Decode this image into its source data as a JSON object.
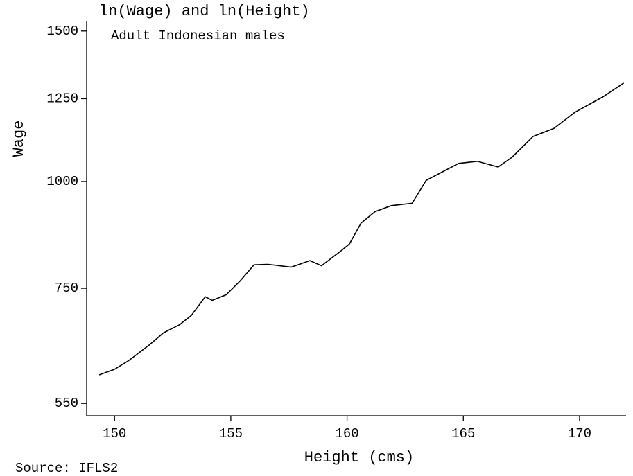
{
  "chart_data": {
    "type": "line",
    "title": "ln(Wage) and ln(Height)",
    "subtitle": "Adult Indonesian males",
    "y_label": "Wage",
    "x_label": "Height (cms)",
    "source": "Source: IFLS2",
    "x": [
      149.34,
      150,
      150.6,
      151.5,
      152.1,
      152.8,
      153.3,
      153.9,
      154.2,
      154.8,
      155.4,
      156.0,
      156.6,
      157.6,
      158.4,
      158.9,
      159.7,
      160.1,
      160.6,
      161.2,
      161.9,
      162.8,
      163.4,
      164.8,
      165.6,
      166.5,
      167.1,
      168.0,
      168.9,
      169.8,
      171.0,
      171.9
    ],
    "values": [
      594,
      603,
      617,
      644,
      665,
      680,
      697,
      733,
      726,
      737,
      765,
      799,
      800,
      794,
      808,
      797,
      828,
      845,
      894,
      922,
      937,
      943,
      1003,
      1050,
      1056,
      1040,
      1068,
      1129,
      1154,
      1205,
      1256,
      1304
    ],
    "color": "#000000",
    "yscale": "log",
    "xlim": [
      148.8,
      172
    ],
    "ylim": [
      532,
      1542
    ],
    "xticks": [
      150,
      155,
      160,
      165,
      170
    ],
    "yticks": [
      550,
      750,
      1000,
      1250,
      1500
    ],
    "grid": false
  }
}
